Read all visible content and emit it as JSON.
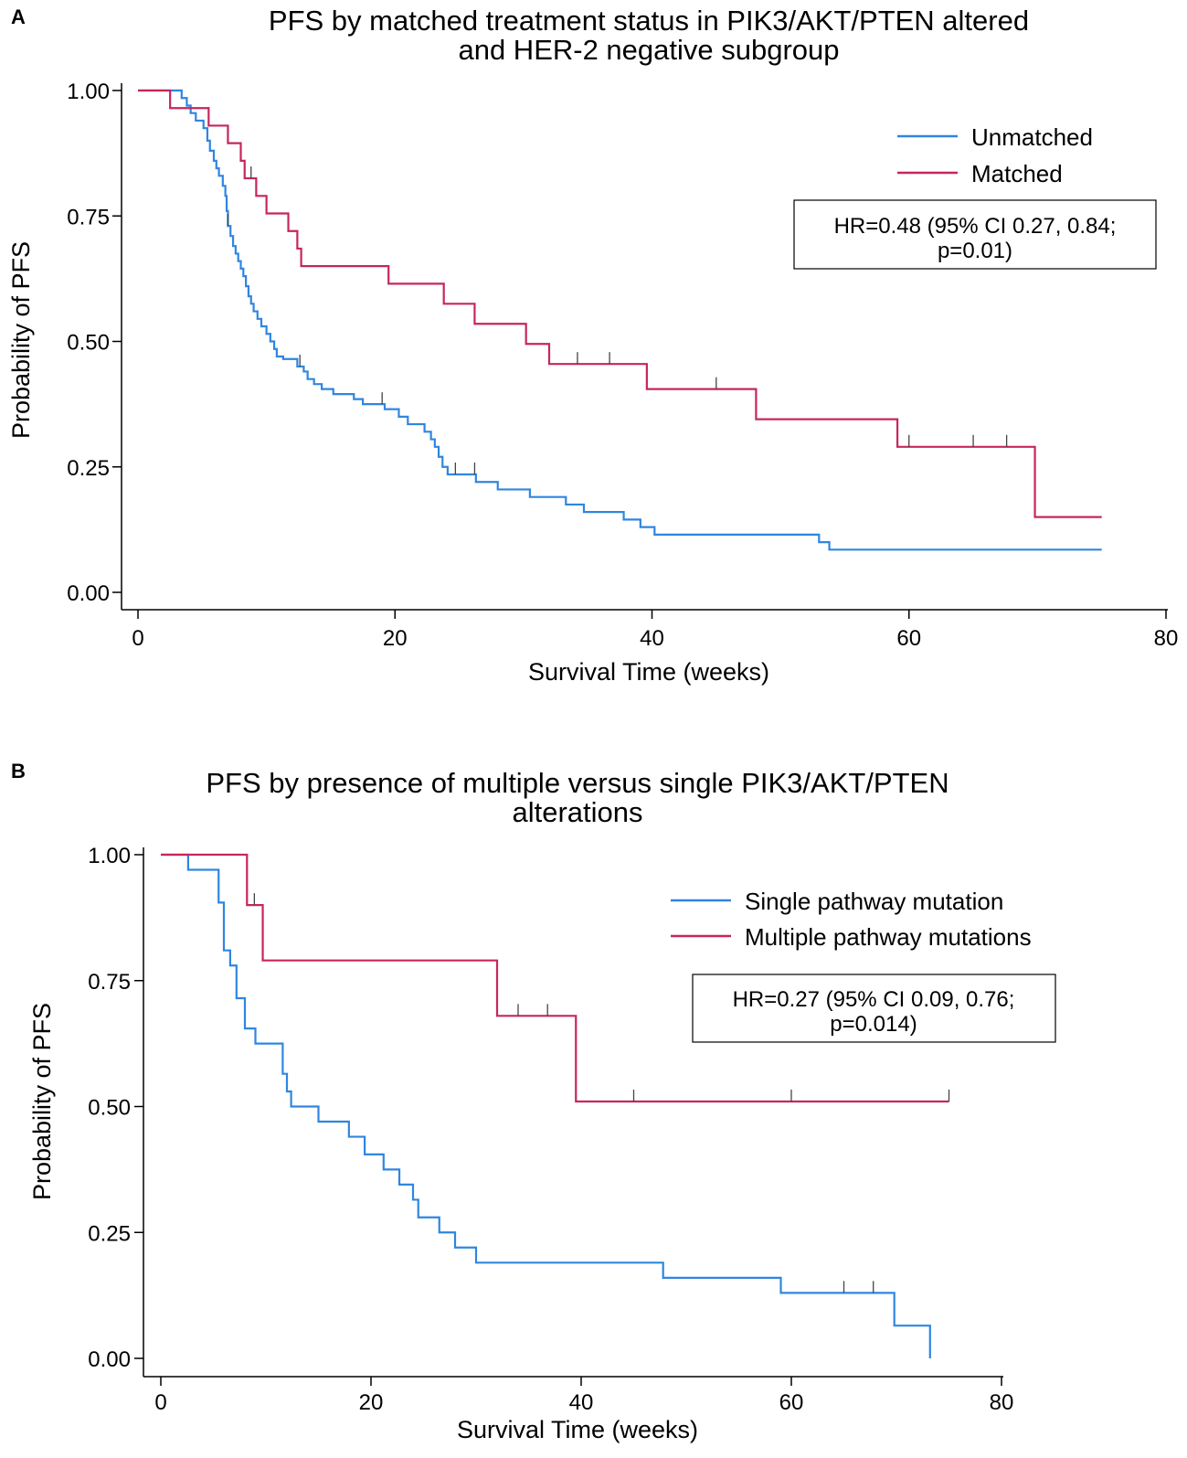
{
  "figure": {
    "panel_a_letter": "A",
    "panel_b_letter": "B"
  },
  "chart_data": [
    {
      "type": "line",
      "step": true,
      "panel": "A",
      "title_lines": [
        "PFS by matched treatment status in PIK3/AKT/PTEN altered",
        "and HER-2 negative subgroup"
      ],
      "xlabel": "Survival Time (weeks)",
      "ylabel": "Probability of PFS",
      "xlim": [
        0,
        80
      ],
      "ylim": [
        0,
        1
      ],
      "xticks": [
        0,
        20,
        40,
        60,
        80
      ],
      "xtick_labels": [
        "0",
        "20",
        "40",
        "60",
        "80"
      ],
      "yticks": [
        0,
        0.25,
        0.5,
        0.75,
        1
      ],
      "ytick_labels": [
        "0.00",
        "0.25",
        "0.50",
        "0.75",
        "1.00"
      ],
      "grid": false,
      "legend_position": "top-right",
      "annotation_lines": [
        "HR=0.48 (95% CI 0.27, 0.84;",
        "p=0.01)"
      ],
      "series": [
        {
          "name": "Unmatched",
          "color": "#2f86e0",
          "steps": [
            [
              0,
              1
            ],
            [
              3,
              1
            ],
            [
              3.4,
              0.985
            ],
            [
              3.8,
              0.97
            ],
            [
              4.1,
              0.955
            ],
            [
              4.5,
              0.94
            ],
            [
              5.1,
              0.925
            ],
            [
              5.4,
              0.9
            ],
            [
              5.6,
              0.88
            ],
            [
              5.9,
              0.86
            ],
            [
              6.1,
              0.845
            ],
            [
              6.3,
              0.83
            ],
            [
              6.6,
              0.81
            ],
            [
              6.8,
              0.79
            ],
            [
              6.9,
              0.76
            ],
            [
              7,
              0.73
            ],
            [
              7.2,
              0.71
            ],
            [
              7.4,
              0.69
            ],
            [
              7.6,
              0.675
            ],
            [
              7.8,
              0.66
            ],
            [
              8,
              0.645
            ],
            [
              8.2,
              0.63
            ],
            [
              8.4,
              0.61
            ],
            [
              8.6,
              0.59
            ],
            [
              8.8,
              0.575
            ],
            [
              9,
              0.56
            ],
            [
              9.3,
              0.545
            ],
            [
              9.6,
              0.53
            ],
            [
              10,
              0.515
            ],
            [
              10.3,
              0.5
            ],
            [
              10.6,
              0.485
            ],
            [
              10.8,
              0.47
            ],
            [
              11.3,
              0.465
            ],
            [
              12.4,
              0.45
            ],
            [
              12.9,
              0.44
            ],
            [
              13.2,
              0.425
            ],
            [
              13.7,
              0.415
            ],
            [
              14.3,
              0.405
            ],
            [
              15.2,
              0.395
            ],
            [
              16.8,
              0.385
            ],
            [
              17.5,
              0.375
            ],
            [
              19.2,
              0.365
            ],
            [
              20.3,
              0.35
            ],
            [
              21,
              0.335
            ],
            [
              22.3,
              0.32
            ],
            [
              22.8,
              0.305
            ],
            [
              23.1,
              0.29
            ],
            [
              23.4,
              0.27
            ],
            [
              23.7,
              0.25
            ],
            [
              24.1,
              0.235
            ],
            [
              26.3,
              0.22
            ],
            [
              28,
              0.205
            ],
            [
              30.5,
              0.19
            ],
            [
              33.3,
              0.175
            ],
            [
              34.7,
              0.16
            ],
            [
              37.8,
              0.145
            ],
            [
              39.1,
              0.13
            ],
            [
              40.2,
              0.115
            ],
            [
              53,
              0.1
            ],
            [
              53.8,
              0.085
            ],
            [
              75,
              0.085
            ]
          ],
          "censored_x": [
            7,
            12.6,
            19,
            24.7,
            26.2
          ]
        },
        {
          "name": "Matched",
          "color": "#c7265c",
          "steps": [
            [
              0,
              1
            ],
            [
              2.5,
              1
            ],
            [
              2.5,
              0.965
            ],
            [
              5.5,
              0.93
            ],
            [
              7,
              0.895
            ],
            [
              8,
              0.86
            ],
            [
              8.3,
              0.825
            ],
            [
              9.2,
              0.79
            ],
            [
              10,
              0.755
            ],
            [
              11.7,
              0.72
            ],
            [
              12.4,
              0.685
            ],
            [
              12.7,
              0.65
            ],
            [
              19.5,
              0.615
            ],
            [
              23.8,
              0.575
            ],
            [
              26.2,
              0.535
            ],
            [
              30.2,
              0.495
            ],
            [
              32,
              0.455
            ],
            [
              39.6,
              0.405
            ],
            [
              48.1,
              0.345
            ],
            [
              59.1,
              0.29
            ],
            [
              69.8,
              0.15
            ],
            [
              75,
              0.15
            ]
          ],
          "censored_x": [
            8.8,
            34.2,
            36.7,
            45,
            60,
            65,
            67.6
          ]
        }
      ]
    },
    {
      "type": "line",
      "step": true,
      "panel": "B",
      "title_lines": [
        "PFS by presence of multiple versus single PIK3/AKT/PTEN",
        "alterations"
      ],
      "xlabel": "Survival Time (weeks)",
      "ylabel": "Probability of PFS",
      "xlim": [
        0,
        80
      ],
      "ylim": [
        0,
        1
      ],
      "xticks": [
        0,
        20,
        40,
        60,
        80
      ],
      "xtick_labels": [
        "0",
        "20",
        "40",
        "60",
        "80"
      ],
      "yticks": [
        0,
        0.25,
        0.5,
        0.75,
        1
      ],
      "ytick_labels": [
        "0.00",
        "0.25",
        "0.50",
        "0.75",
        "1.00"
      ],
      "grid": false,
      "legend_position": "top-right",
      "annotation_lines": [
        "HR=0.27 (95% CI 0.09, 0.76;",
        "p=0.014)"
      ],
      "series": [
        {
          "name": "Single pathway mutation",
          "color": "#2f86e0",
          "steps": [
            [
              0,
              1
            ],
            [
              2.6,
              1
            ],
            [
              2.6,
              0.97
            ],
            [
              5.5,
              0.905
            ],
            [
              6,
              0.81
            ],
            [
              6.6,
              0.78
            ],
            [
              7.2,
              0.715
            ],
            [
              8,
              0.655
            ],
            [
              9,
              0.625
            ],
            [
              11.6,
              0.565
            ],
            [
              12,
              0.53
            ],
            [
              12.4,
              0.5
            ],
            [
              15,
              0.47
            ],
            [
              17.9,
              0.44
            ],
            [
              19.4,
              0.405
            ],
            [
              21.2,
              0.375
            ],
            [
              22.7,
              0.345
            ],
            [
              24,
              0.315
            ],
            [
              24.5,
              0.28
            ],
            [
              26.5,
              0.25
            ],
            [
              28,
              0.22
            ],
            [
              30,
              0.19
            ],
            [
              47.8,
              0.16
            ],
            [
              59,
              0.13
            ],
            [
              69.8,
              0.065
            ],
            [
              73.2,
              0
            ]
          ],
          "censored_x": [
            65,
            67.8
          ]
        },
        {
          "name": "Multiple pathway mutations",
          "color": "#c7265c",
          "steps": [
            [
              0,
              1
            ],
            [
              8.2,
              1
            ],
            [
              8.2,
              0.9
            ],
            [
              9.7,
              0.79
            ],
            [
              32,
              0.68
            ],
            [
              39.5,
              0.51
            ],
            [
              75,
              0.51
            ]
          ],
          "censored_x": [
            8.9,
            34,
            36.8,
            45,
            60,
            75
          ]
        }
      ]
    }
  ]
}
